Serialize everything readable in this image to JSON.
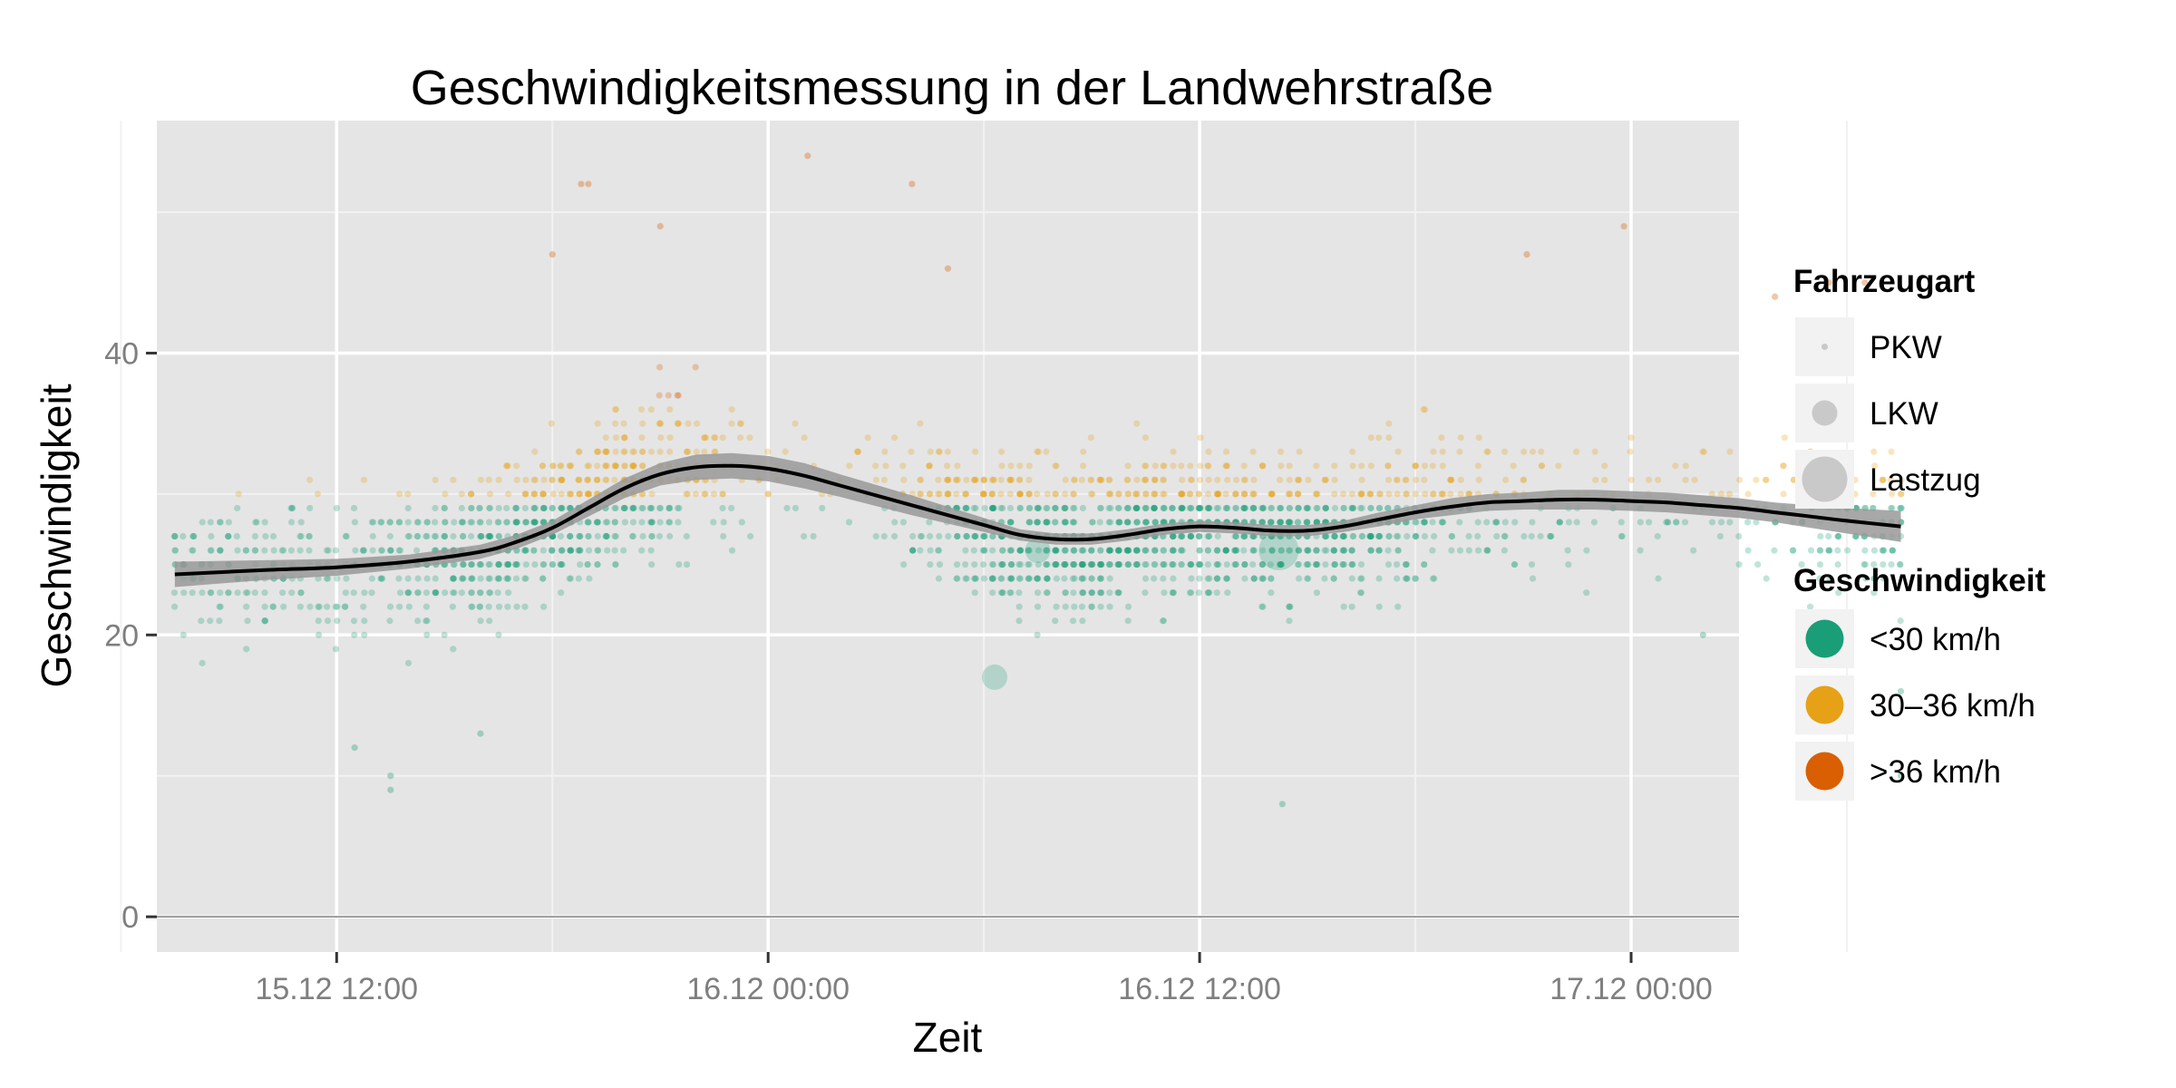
{
  "chart_data": {
    "type": "scatter",
    "title": "Geschwindigkeitsmessung in der Landwehrstraße",
    "xlabel": "Zeit",
    "ylabel": "Geschwindigkeit",
    "x_range_hours": [
      -5,
      39
    ],
    "ylim": [
      -2.5,
      56.5
    ],
    "x_ticks": [
      {
        "label": "15.12 12:00",
        "hours": 0
      },
      {
        "label": "16.12 00:00",
        "hours": 12
      },
      {
        "label": "16.12 12:00",
        "hours": 24
      },
      {
        "label": "17.12 00:00",
        "hours": 36
      }
    ],
    "y_ticks": [
      {
        "label": "0",
        "value": 0
      },
      {
        "label": "20",
        "value": 20
      },
      {
        "label": "40",
        "value": 40
      }
    ],
    "colors": {
      "panel": "#e5e5e5",
      "grid_major": "#ffffff",
      "grid_minor": "#f2f2f2",
      "slow": "#1a9e77",
      "medium": "#e6a117",
      "fast": "#d95f02",
      "smooth_line": "#000000",
      "smooth_band": "#999999"
    },
    "legend": {
      "position": "right",
      "vehicle_title": "Fahrzeugart",
      "vehicle_items": [
        {
          "label": "PKW",
          "size": "small"
        },
        {
          "label": "LKW",
          "size": "medium"
        },
        {
          "label": "Lastzug",
          "size": "large"
        }
      ],
      "speed_title": "Geschwindigkeit",
      "speed_items": [
        {
          "label": "<30 km/h",
          "color": "#1a9e77"
        },
        {
          "label": "30–36 km/h",
          "color": "#e6a117"
        },
        {
          "label": ">36 km/h",
          "color": "#d95f02"
        }
      ]
    },
    "smooth": {
      "x_hours": [
        -4.5,
        -2,
        0,
        2,
        4,
        5,
        6,
        7,
        8,
        9,
        10,
        11,
        12,
        13,
        14,
        16,
        18,
        19,
        20,
        21,
        22,
        23,
        24,
        25,
        26,
        27,
        28,
        29,
        30,
        31,
        32,
        33,
        34,
        35,
        36,
        37,
        38,
        39,
        40,
        41,
        42,
        43.5
      ],
      "y": [
        24.3,
        24.6,
        24.8,
        25.2,
        25.9,
        26.6,
        27.6,
        29.0,
        30.4,
        31.4,
        31.9,
        32.0,
        31.8,
        31.3,
        30.6,
        29.2,
        27.8,
        27.1,
        26.8,
        26.8,
        27.1,
        27.5,
        27.7,
        27.6,
        27.4,
        27.4,
        27.7,
        28.2,
        28.7,
        29.1,
        29.4,
        29.5,
        29.6,
        29.6,
        29.5,
        29.4,
        29.2,
        29.0,
        28.7,
        28.4,
        28.1,
        27.7
      ],
      "se": [
        0.45,
        0.35,
        0.3,
        0.25,
        0.25,
        0.25,
        0.25,
        0.3,
        0.35,
        0.4,
        0.45,
        0.45,
        0.45,
        0.45,
        0.4,
        0.35,
        0.25,
        0.2,
        0.2,
        0.2,
        0.2,
        0.2,
        0.2,
        0.2,
        0.2,
        0.2,
        0.2,
        0.25,
        0.25,
        0.3,
        0.3,
        0.3,
        0.35,
        0.35,
        0.35,
        0.35,
        0.35,
        0.35,
        0.35,
        0.4,
        0.45,
        0.55
      ]
    },
    "scatter_density": {
      "x_hours": [
        -4.5,
        -2,
        0,
        2,
        4,
        6,
        8,
        10,
        12,
        14,
        16,
        18,
        20,
        22,
        24,
        26,
        28,
        30,
        32,
        34,
        36,
        38,
        40,
        42,
        43.5
      ],
      "relative_count": [
        0.35,
        0.35,
        0.25,
        0.45,
        0.75,
        0.95,
        0.8,
        0.35,
        0.1,
        0.05,
        0.25,
        0.9,
        1.0,
        1.0,
        0.95,
        0.85,
        0.75,
        0.55,
        0.25,
        0.15,
        0.1,
        0.1,
        0.15,
        0.35,
        0.5
      ]
    },
    "highlighted_points": [
      {
        "x_hours": 18.3,
        "y": 17,
        "vehicle": "LKW",
        "speed_class": "<30 km/h"
      },
      {
        "x_hours": 19.5,
        "y": 26,
        "vehicle": "LKW",
        "speed_class": "<30 km/h"
      },
      {
        "x_hours": 26.2,
        "y": 26,
        "vehicle": "Lastzug",
        "speed_class": "<30 km/h"
      }
    ],
    "outlier_points": [
      {
        "x_hours": 13.1,
        "y": 54
      },
      {
        "x_hours": 6.8,
        "y": 52
      },
      {
        "x_hours": 7.0,
        "y": 52
      },
      {
        "x_hours": 16.0,
        "y": 52
      },
      {
        "x_hours": 9.0,
        "y": 49
      },
      {
        "x_hours": 6.0,
        "y": 47
      },
      {
        "x_hours": 35.8,
        "y": 49
      },
      {
        "x_hours": 33.1,
        "y": 47
      },
      {
        "x_hours": 17.0,
        "y": 46
      },
      {
        "x_hours": 40.0,
        "y": 44
      },
      {
        "x_hours": 41.5,
        "y": 45
      },
      {
        "x_hours": 42.5,
        "y": 45
      },
      {
        "x_hours": 0.5,
        "y": 12
      },
      {
        "x_hours": 1.5,
        "y": 9
      },
      {
        "x_hours": 1.5,
        "y": 10
      },
      {
        "x_hours": 4.0,
        "y": 13
      },
      {
        "x_hours": 26.3,
        "y": 8
      },
      {
        "x_hours": 43.5,
        "y": 10
      },
      {
        "x_hours": 43.5,
        "y": 16
      },
      {
        "x_hours": 38.0,
        "y": 20
      }
    ]
  }
}
